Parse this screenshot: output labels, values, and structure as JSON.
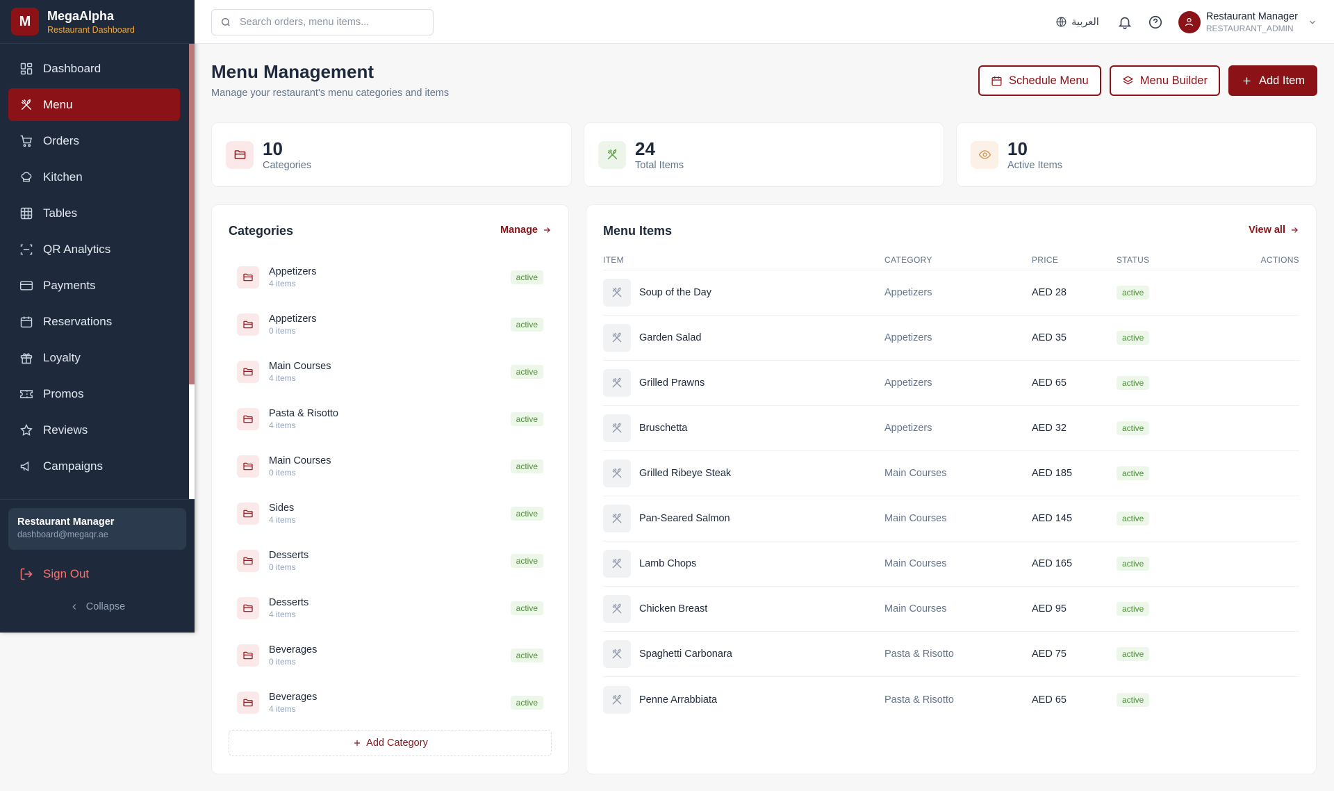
{
  "brand": {
    "logo_letter": "M",
    "name": "MegaAlpha",
    "subtitle": "Restaurant Dashboard",
    "accent": "#8b1317"
  },
  "sidebar": {
    "items": [
      {
        "label": "Dashboard",
        "icon": "dashboard-icon",
        "active": false
      },
      {
        "label": "Menu",
        "icon": "utensils-icon",
        "active": true
      },
      {
        "label": "Orders",
        "icon": "cart-icon",
        "active": false
      },
      {
        "label": "Kitchen",
        "icon": "chef-hat-icon",
        "active": false
      },
      {
        "label": "Tables",
        "icon": "grid-icon",
        "active": false
      },
      {
        "label": "QR Analytics",
        "icon": "qr-scan-icon",
        "active": false
      },
      {
        "label": "Payments",
        "icon": "credit-card-icon",
        "active": false
      },
      {
        "label": "Reservations",
        "icon": "calendar-icon",
        "active": false
      },
      {
        "label": "Loyalty",
        "icon": "gift-icon",
        "active": false
      },
      {
        "label": "Promos",
        "icon": "ticket-icon",
        "active": false
      },
      {
        "label": "Reviews",
        "icon": "star-icon",
        "active": false
      },
      {
        "label": "Campaigns",
        "icon": "megaphone-icon",
        "active": false
      }
    ],
    "user": {
      "name": "Restaurant Manager",
      "email": "dashboard@megaqr.ae"
    },
    "sign_out": "Sign Out",
    "collapse": "Collapse"
  },
  "topbar": {
    "search_placeholder": "Search orders, menu items...",
    "language": "العربية",
    "profile": {
      "name": "Restaurant Manager",
      "role": "RESTAURANT_ADMIN"
    }
  },
  "header": {
    "title": "Menu Management",
    "subtitle": "Manage your restaurant's menu categories and items",
    "schedule_label": "Schedule Menu",
    "builder_label": "Menu Builder",
    "add_label": "Add Item"
  },
  "stats": [
    {
      "value": "10",
      "label": "Categories",
      "icon": "folder-icon"
    },
    {
      "value": "24",
      "label": "Total Items",
      "icon": "utensils-icon"
    },
    {
      "value": "10",
      "label": "Active Items",
      "icon": "eye-icon"
    }
  ],
  "categories": {
    "title": "Categories",
    "link": "Manage",
    "add_label": "Add Category",
    "rows": [
      {
        "name": "Appetizers",
        "count": "4 items",
        "status": "active"
      },
      {
        "name": "Appetizers",
        "count": "0 items",
        "status": "active"
      },
      {
        "name": "Main Courses",
        "count": "4 items",
        "status": "active"
      },
      {
        "name": "Pasta & Risotto",
        "count": "4 items",
        "status": "active"
      },
      {
        "name": "Main Courses",
        "count": "0 items",
        "status": "active"
      },
      {
        "name": "Sides",
        "count": "4 items",
        "status": "active"
      },
      {
        "name": "Desserts",
        "count": "0 items",
        "status": "active"
      },
      {
        "name": "Desserts",
        "count": "4 items",
        "status": "active"
      },
      {
        "name": "Beverages",
        "count": "0 items",
        "status": "active"
      },
      {
        "name": "Beverages",
        "count": "4 items",
        "status": "active"
      }
    ]
  },
  "menu_items": {
    "title": "Menu Items",
    "link": "View all",
    "columns": [
      "ITEM",
      "CATEGORY",
      "PRICE",
      "STATUS",
      "ACTIONS"
    ],
    "rows": [
      {
        "name": "Soup of the Day",
        "category": "Appetizers",
        "price": "AED 28",
        "status": "active"
      },
      {
        "name": "Garden Salad",
        "category": "Appetizers",
        "price": "AED 35",
        "status": "active"
      },
      {
        "name": "Grilled Prawns",
        "category": "Appetizers",
        "price": "AED 65",
        "status": "active"
      },
      {
        "name": "Bruschetta",
        "category": "Appetizers",
        "price": "AED 32",
        "status": "active"
      },
      {
        "name": "Grilled Ribeye Steak",
        "category": "Main Courses",
        "price": "AED 185",
        "status": "active"
      },
      {
        "name": "Pan-Seared Salmon",
        "category": "Main Courses",
        "price": "AED 145",
        "status": "active"
      },
      {
        "name": "Lamb Chops",
        "category": "Main Courses",
        "price": "AED 165",
        "status": "active"
      },
      {
        "name": "Chicken Breast",
        "category": "Main Courses",
        "price": "AED 95",
        "status": "active"
      },
      {
        "name": "Spaghetti Carbonara",
        "category": "Pasta & Risotto",
        "price": "AED 75",
        "status": "active"
      },
      {
        "name": "Penne Arrabbiata",
        "category": "Pasta & Risotto",
        "price": "AED 65",
        "status": "active"
      }
    ]
  }
}
